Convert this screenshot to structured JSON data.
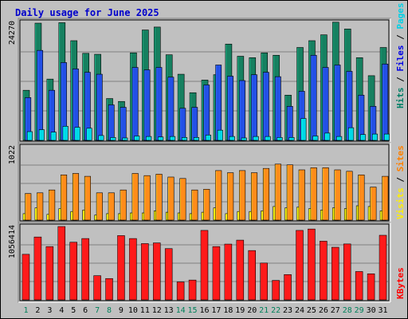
{
  "chart_data": [
    {
      "type": "bar",
      "title": "Daily usage for June 2025",
      "categories": [
        "1",
        "2",
        "3",
        "4",
        "5",
        "6",
        "7",
        "8",
        "9",
        "10",
        "11",
        "12",
        "13",
        "14",
        "15",
        "16",
        "17",
        "18",
        "19",
        "20",
        "21",
        "22",
        "23",
        "24",
        "25",
        "26",
        "27",
        "28",
        "29",
        "30",
        "31"
      ],
      "weekend_categories": [
        "1",
        "7",
        "8",
        "14",
        "15",
        "21",
        "22",
        "28",
        "29"
      ],
      "ylabel_parts": [
        {
          "text": "Hits",
          "color": "#007f66"
        },
        {
          "text": "Files",
          "color": "#0000e6"
        },
        {
          "text": "Pages",
          "color": "#00d0e6"
        }
      ],
      "y_tick_label": "24270",
      "ylim": [
        0,
        24270
      ],
      "series": [
        {
          "name": "Hits",
          "color": "#168060",
          "values": [
            10300,
            24100,
            12600,
            24200,
            20500,
            17900,
            17700,
            8600,
            8000,
            18000,
            22700,
            23300,
            17600,
            13600,
            9800,
            12400,
            13500,
            19800,
            17300,
            17000,
            18000,
            17500,
            9300,
            19100,
            20500,
            21700,
            24300,
            22900,
            17000,
            13300,
            19100
          ]
        },
        {
          "name": "Files",
          "color": "#2350e6",
          "values": [
            8800,
            18500,
            10300,
            16000,
            14700,
            14000,
            13600,
            7300,
            6800,
            15000,
            14500,
            15000,
            13000,
            6600,
            6800,
            11400,
            15500,
            13200,
            12300,
            13500,
            14000,
            13100,
            7000,
            10100,
            17500,
            15000,
            15500,
            14200,
            9300,
            7000,
            15700
          ]
        },
        {
          "name": "Pages",
          "color": "#00d8e6",
          "values": [
            1800,
            2200,
            1700,
            2900,
            2700,
            2500,
            1000,
            600,
            500,
            900,
            800,
            700,
            800,
            600,
            600,
            1100,
            2100,
            800,
            500,
            800,
            800,
            600,
            600,
            4500,
            900,
            1500,
            800,
            2600,
            1200,
            1300,
            1300
          ]
        }
      ]
    },
    {
      "type": "bar",
      "categories": [
        "1",
        "2",
        "3",
        "4",
        "5",
        "6",
        "7",
        "8",
        "9",
        "10",
        "11",
        "12",
        "13",
        "14",
        "15",
        "16",
        "17",
        "18",
        "19",
        "20",
        "21",
        "22",
        "23",
        "24",
        "25",
        "26",
        "27",
        "28",
        "29",
        "30",
        "31"
      ],
      "ylabel_parts": [
        {
          "text": "Visits",
          "color": "#ffee00"
        },
        {
          "text": "Sites",
          "color": "#ff8000"
        }
      ],
      "y_tick_label": "1022",
      "ylim": [
        0,
        1022
      ],
      "series": [
        {
          "name": "Visits",
          "color": "#ffff10",
          "values": [
            90,
            170,
            80,
            160,
            120,
            140,
            70,
            90,
            90,
            100,
            100,
            130,
            110,
            100,
            90,
            110,
            170,
            90,
            120,
            120,
            130,
            190,
            170,
            180,
            160,
            140,
            170,
            160,
            200,
            190,
            130
          ]
        },
        {
          "name": "Sites",
          "color": "#ff8c1a",
          "values": [
            370,
            380,
            420,
            630,
            650,
            610,
            380,
            380,
            420,
            650,
            620,
            640,
            600,
            580,
            420,
            430,
            690,
            660,
            690,
            660,
            720,
            780,
            770,
            700,
            730,
            730,
            700,
            680,
            630,
            460,
            610
          ]
        }
      ]
    },
    {
      "type": "bar",
      "categories": [
        "1",
        "2",
        "3",
        "4",
        "5",
        "6",
        "7",
        "8",
        "9",
        "10",
        "11",
        "12",
        "13",
        "14",
        "15",
        "16",
        "17",
        "18",
        "19",
        "20",
        "21",
        "22",
        "23",
        "24",
        "25",
        "26",
        "27",
        "28",
        "29",
        "30",
        "31"
      ],
      "ylabel_parts": [
        {
          "text": "KBytes",
          "color": "#ff0000"
        }
      ],
      "y_tick_label": "1056414",
      "ylim": [
        0,
        1056414
      ],
      "series": [
        {
          "name": "KBytes",
          "color": "#ff1a1a",
          "values": [
            656000,
            905000,
            767000,
            1056000,
            830000,
            883000,
            348000,
            307000,
            925000,
            883000,
            810000,
            820000,
            738000,
            258000,
            285000,
            1000000,
            767000,
            803000,
            860000,
            710000,
            530000,
            280000,
            364000,
            1000000,
            1020000,
            845000,
            757000,
            805000,
            408000,
            375000,
            930000
          ]
        }
      ]
    }
  ]
}
